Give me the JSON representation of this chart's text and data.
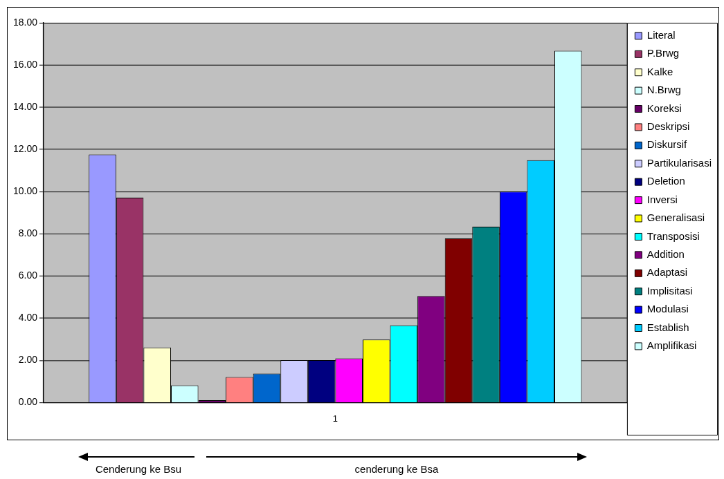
{
  "chart_data": {
    "type": "bar",
    "categories": [
      "1"
    ],
    "series": [
      {
        "name": "Literal",
        "color": "#9999ff",
        "values": [
          11.76
        ]
      },
      {
        "name": "P.Brwg",
        "color": "#993366",
        "values": [
          9.71
        ]
      },
      {
        "name": "Kalke",
        "color": "#ffffcc",
        "values": [
          2.61
        ]
      },
      {
        "name": "N.Brwg",
        "color": "#ccffff",
        "values": [
          0.82
        ]
      },
      {
        "name": "Koreksi",
        "color": "#660066",
        "values": [
          0.12
        ]
      },
      {
        "name": "Deskripsi",
        "color": "#ff8080",
        "values": [
          1.21
        ]
      },
      {
        "name": "Diskursif",
        "color": "#0066cc",
        "values": [
          1.38
        ]
      },
      {
        "name": "Partikularisasi",
        "color": "#ccccff",
        "values": [
          2.02
        ]
      },
      {
        "name": "Deletion",
        "color": "#000080",
        "values": [
          2.02
        ]
      },
      {
        "name": "Inversi",
        "color": "#ff00ff",
        "values": [
          2.1
        ]
      },
      {
        "name": "Generalisasi",
        "color": "#ffff00",
        "values": [
          2.99
        ]
      },
      {
        "name": "Transposisi",
        "color": "#00ffff",
        "values": [
          3.66
        ]
      },
      {
        "name": "Addition",
        "color": "#800080",
        "values": [
          5.05
        ]
      },
      {
        "name": "Adaptasi",
        "color": "#800000",
        "values": [
          7.78
        ]
      },
      {
        "name": "Implisitasi",
        "color": "#008080",
        "values": [
          8.34
        ]
      },
      {
        "name": "Modulasi",
        "color": "#0000ff",
        "values": [
          10.0
        ]
      },
      {
        "name": "Establish",
        "color": "#00ccff",
        "values": [
          11.49
        ]
      },
      {
        "name": "Amplifikasi",
        "color": "#ccffff",
        "values": [
          16.67
        ]
      }
    ],
    "ylim": [
      0,
      18
    ],
    "yticks": [
      {
        "value": 0,
        "label": "0.00"
      },
      {
        "value": 2,
        "label": "2.00"
      },
      {
        "value": 4,
        "label": "4.00"
      },
      {
        "value": 6,
        "label": "6.00"
      },
      {
        "value": 8,
        "label": "8.00"
      },
      {
        "value": 10,
        "label": "10.00"
      },
      {
        "value": 12,
        "label": "12.00"
      },
      {
        "value": 14,
        "label": "14.00"
      },
      {
        "value": 16,
        "label": "16.00"
      },
      {
        "value": 18,
        "label": "18.00"
      }
    ],
    "grid": "y",
    "legend": "right",
    "annotations": [
      "Cenderung ke Bsu",
      "cenderung ke Bsa"
    ]
  }
}
